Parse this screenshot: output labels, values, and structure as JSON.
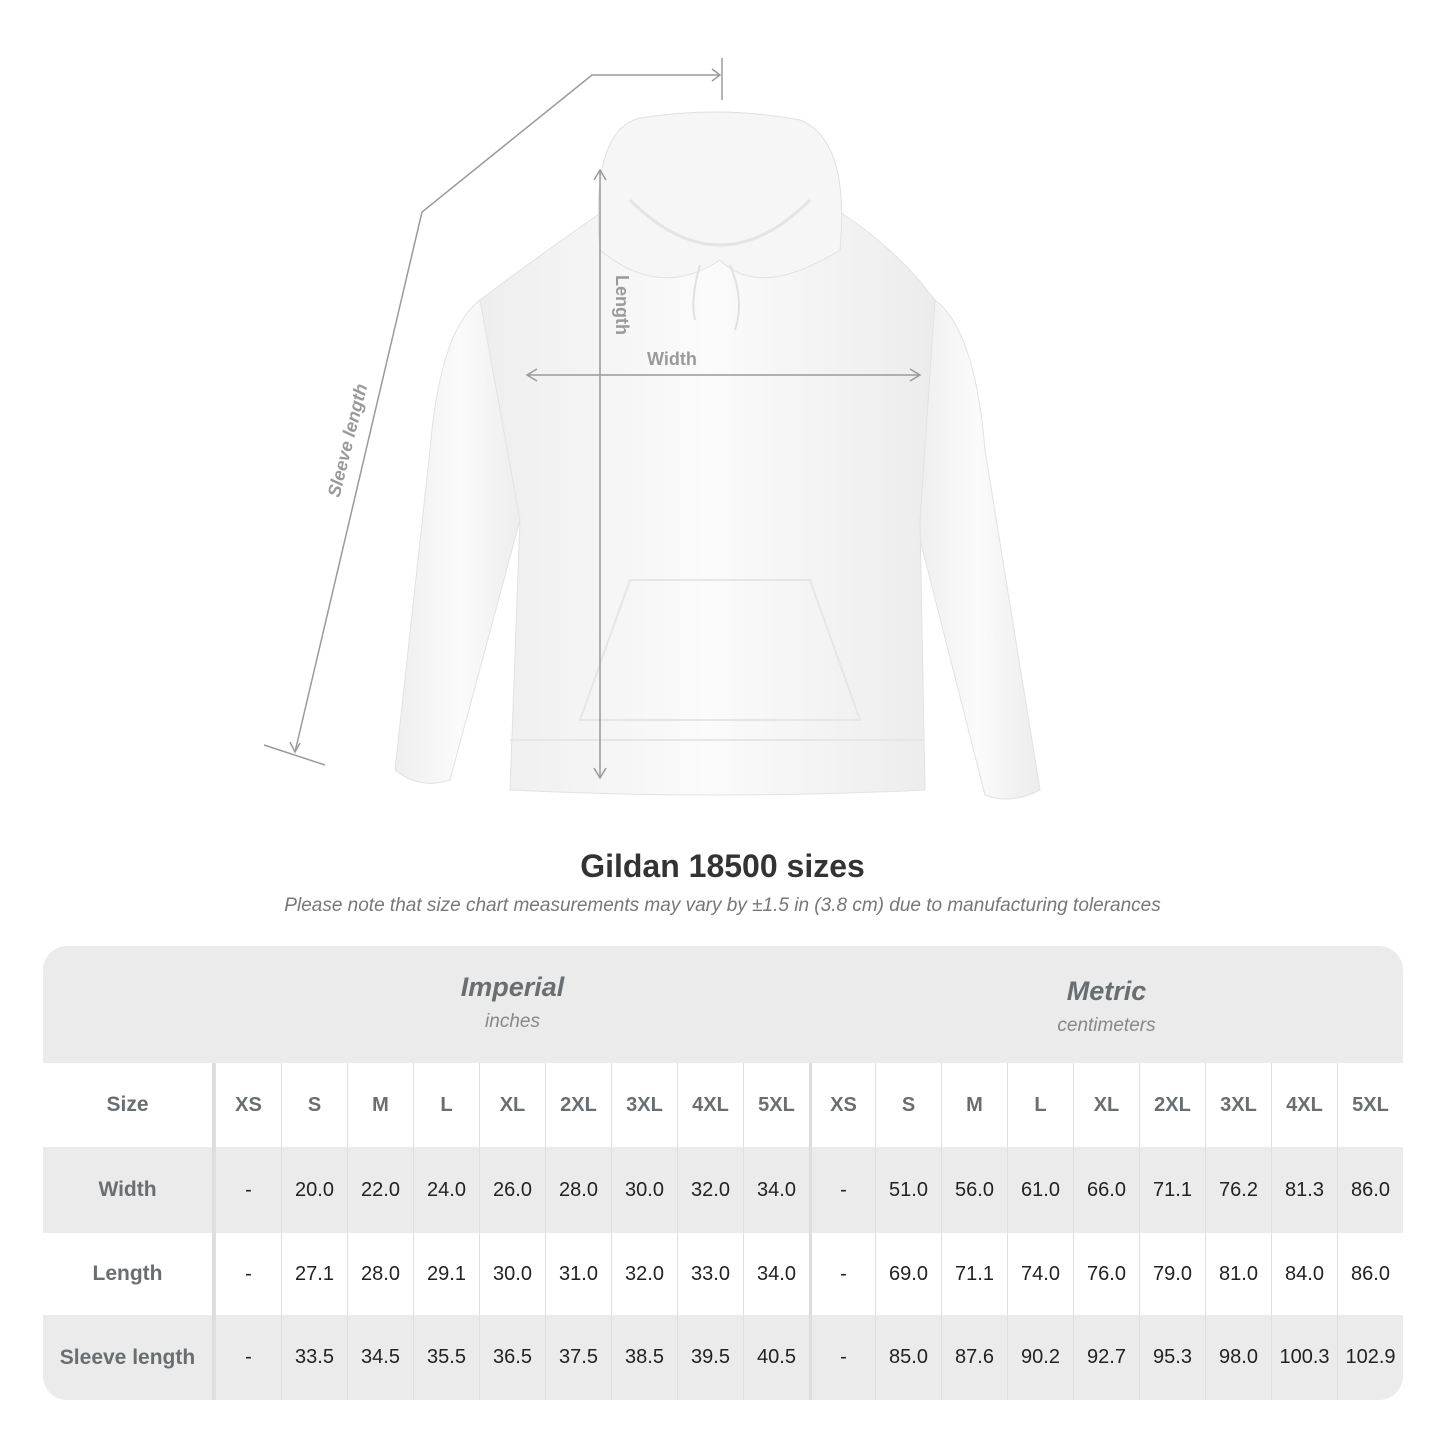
{
  "diagram": {
    "labels": {
      "length": "Length",
      "width": "Width",
      "sleeve": "Sleeve length"
    },
    "garment_color": "#ffffff",
    "line_color": "#9a9a9a"
  },
  "title": "Gildan 18500 sizes",
  "note": "Please note that size chart measurements may vary by ±1.5 in (3.8 cm) due to manufacturing tolerances",
  "table": {
    "imperial": {
      "name": "Imperial",
      "unit": "inches"
    },
    "metric": {
      "name": "Metric",
      "unit": "centimeters"
    },
    "size_label": "Size",
    "sizes": [
      "XS",
      "S",
      "M",
      "L",
      "XL",
      "2XL",
      "3XL",
      "4XL",
      "5XL"
    ],
    "rows": [
      {
        "label": "Width",
        "imperial": [
          "-",
          "20.0",
          "22.0",
          "24.0",
          "26.0",
          "28.0",
          "30.0",
          "32.0",
          "34.0"
        ],
        "metric": [
          "-",
          "51.0",
          "56.0",
          "61.0",
          "66.0",
          "71.1",
          "76.2",
          "81.3",
          "86.0"
        ]
      },
      {
        "label": "Length",
        "imperial": [
          "-",
          "27.1",
          "28.0",
          "29.1",
          "30.0",
          "31.0",
          "32.0",
          "33.0",
          "34.0"
        ],
        "metric": [
          "-",
          "69.0",
          "71.1",
          "74.0",
          "76.0",
          "79.0",
          "81.0",
          "84.0",
          "86.0"
        ]
      },
      {
        "label": "Sleeve length",
        "imperial": [
          "-",
          "33.5",
          "34.5",
          "35.5",
          "36.5",
          "37.5",
          "38.5",
          "39.5",
          "40.5"
        ],
        "metric": [
          "-",
          "85.0",
          "87.6",
          "90.2",
          "92.7",
          "95.3",
          "98.0",
          "100.3",
          "102.9"
        ]
      }
    ],
    "colors": {
      "band": "#ebebeb",
      "label_text": "#6a6e70"
    }
  }
}
